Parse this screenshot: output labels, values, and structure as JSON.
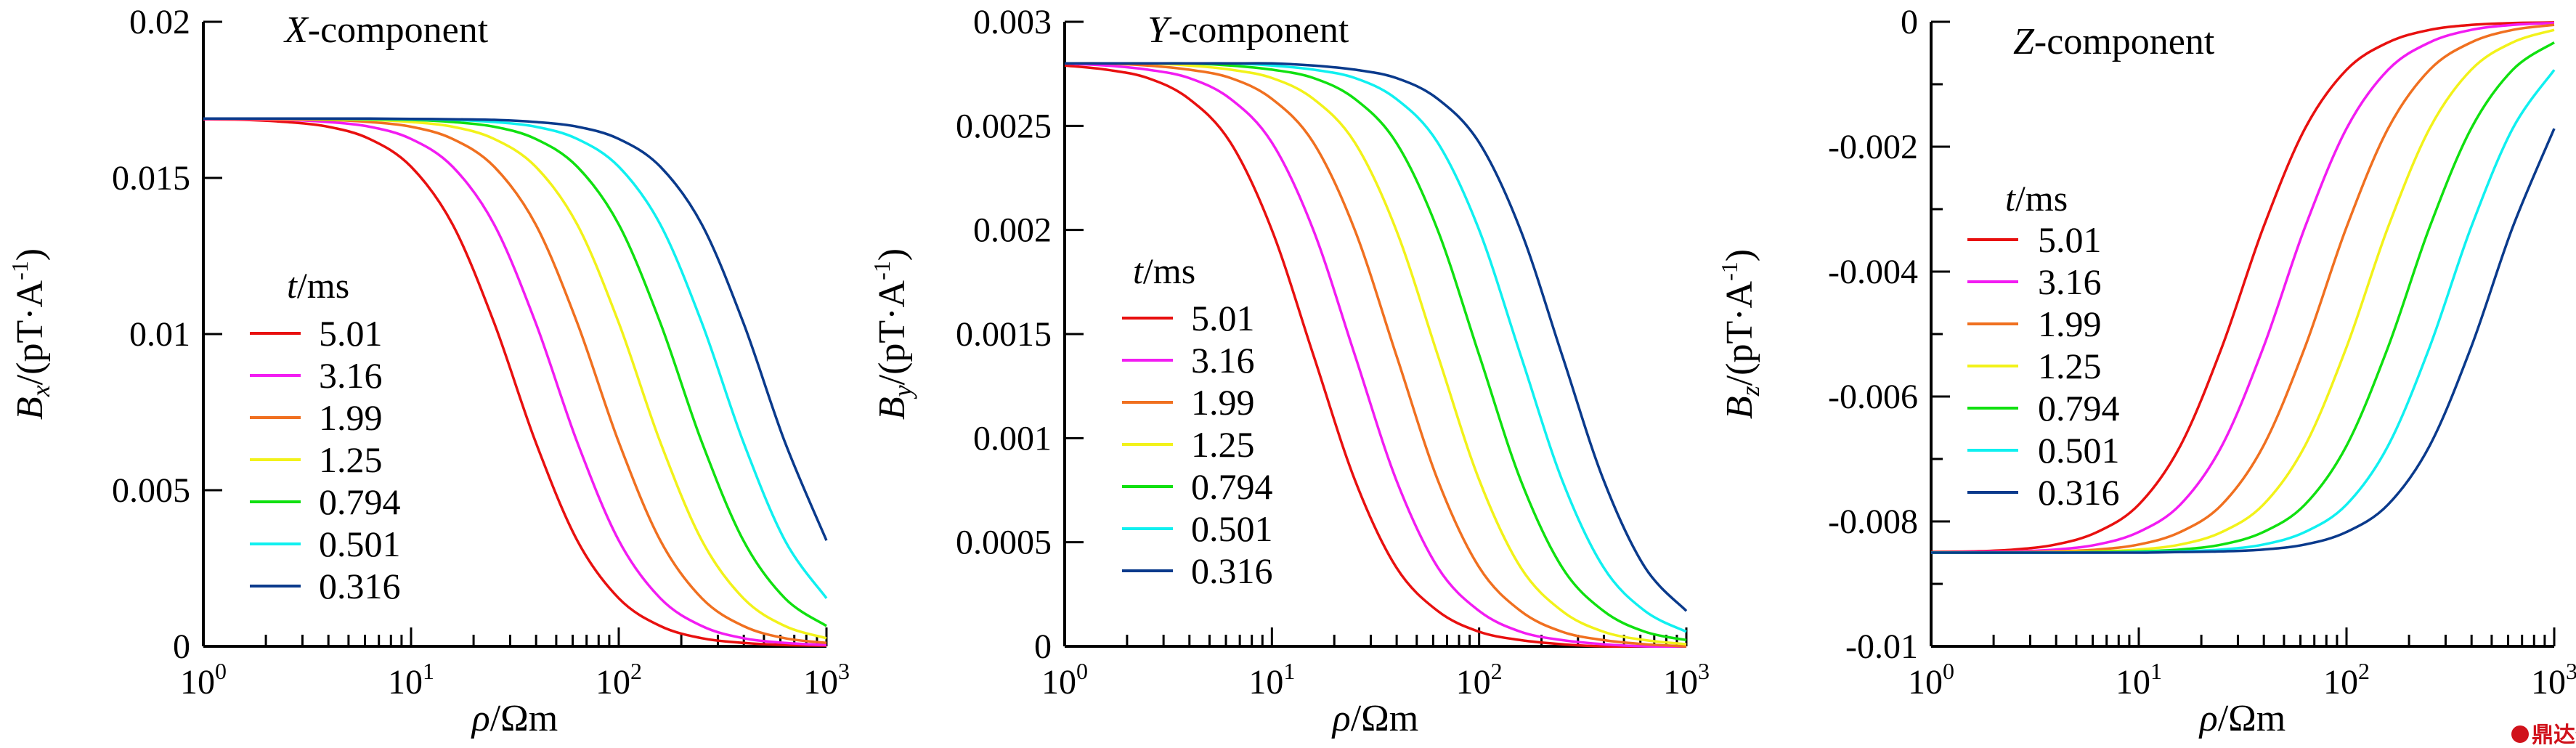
{
  "x_grid": [
    1,
    1.585,
    2.512,
    3.981,
    6.31,
    10,
    15.85,
    25.12,
    39.81,
    63.1,
    100,
    158.5,
    251.2,
    398.1,
    631,
    1000
  ],
  "legend_title": {
    "var": "t",
    "unit": "/ms"
  },
  "colors": [
    "#e8100f",
    "#f21cf2",
    "#f07020",
    "#f2f21a",
    "#10e010",
    "#10f0f0",
    "#0a3a8c"
  ],
  "watermark": "鼎达信",
  "chart_data": [
    {
      "type": "line",
      "title_var": "X",
      "title_rest": "-component",
      "xlabel_var": "ρ",
      "xlabel_unit": "/Ωm",
      "xscale": "log",
      "xlim": [
        1,
        1000
      ],
      "xticks": [
        {
          "base": "10",
          "exp": "0"
        },
        {
          "base": "10",
          "exp": "1"
        },
        {
          "base": "10",
          "exp": "2"
        },
        {
          "base": "10",
          "exp": "3"
        }
      ],
      "ylabel_var": "B",
      "ylabel_sub": "x",
      "ylabel_unit": "/(pT·A",
      "ylabel_sup": "-1",
      "ylabel_end": ")",
      "ylim": [
        0,
        0.02
      ],
      "yticks": [
        "0",
        "0.005",
        "0.01",
        "0.015",
        "0.02"
      ],
      "ytick_values": [
        0,
        0.005,
        0.01,
        0.015,
        0.02
      ],
      "yminor": [],
      "legend_placement": "center-left",
      "series": [
        {
          "name": "5.01",
          "values": [
            0.01688,
            0.01686,
            0.01679,
            0.01664,
            0.01625,
            0.01536,
            0.01351,
            0.01036,
            0.00654,
            0.00339,
            0.00154,
            0.00065,
            0.00026,
            0.00011,
            4e-05,
            2e-05
          ]
        },
        {
          "name": "3.16",
          "values": [
            0.01689,
            0.01688,
            0.01686,
            0.01679,
            0.01664,
            0.01625,
            0.01536,
            0.01351,
            0.01036,
            0.00654,
            0.00339,
            0.00154,
            0.00065,
            0.00026,
            0.00011,
            4e-05
          ]
        },
        {
          "name": "1.99",
          "values": [
            0.0169,
            0.01689,
            0.01688,
            0.01686,
            0.01679,
            0.01664,
            0.01625,
            0.01536,
            0.01351,
            0.01036,
            0.00654,
            0.00339,
            0.00154,
            0.00065,
            0.00026,
            0.00011
          ]
        },
        {
          "name": "1.25",
          "values": [
            0.0169,
            0.0169,
            0.01689,
            0.01688,
            0.01686,
            0.01679,
            0.01664,
            0.01625,
            0.01536,
            0.01351,
            0.01036,
            0.00654,
            0.00339,
            0.00154,
            0.00065,
            0.00026
          ]
        },
        {
          "name": "0.794",
          "values": [
            0.0169,
            0.0169,
            0.0169,
            0.01689,
            0.01688,
            0.01686,
            0.01679,
            0.01664,
            0.01625,
            0.01536,
            0.01351,
            0.01036,
            0.00654,
            0.00339,
            0.00154,
            0.00065
          ]
        },
        {
          "name": "0.501",
          "values": [
            0.0169,
            0.0169,
            0.0169,
            0.0169,
            0.01689,
            0.01688,
            0.01686,
            0.01679,
            0.01664,
            0.01625,
            0.01536,
            0.01351,
            0.01036,
            0.00654,
            0.00339,
            0.00154
          ]
        },
        {
          "name": "0.316",
          "values": [
            0.0169,
            0.0169,
            0.0169,
            0.0169,
            0.0169,
            0.01689,
            0.01688,
            0.01686,
            0.01679,
            0.01664,
            0.01625,
            0.01536,
            0.01351,
            0.01036,
            0.00654,
            0.00339
          ]
        }
      ]
    },
    {
      "type": "line",
      "title_var": "Y",
      "title_rest": "-component",
      "xlabel_var": "ρ",
      "xlabel_unit": "/Ωm",
      "xscale": "log",
      "xlim": [
        1,
        1000
      ],
      "xticks": [
        {
          "base": "10",
          "exp": "0"
        },
        {
          "base": "10",
          "exp": "1"
        },
        {
          "base": "10",
          "exp": "2"
        },
        {
          "base": "10",
          "exp": "3"
        }
      ],
      "ylabel_var": "B",
      "ylabel_sub": "y",
      "ylabel_unit": "/(pT·A",
      "ylabel_sup": "-1",
      "ylabel_end": ")",
      "ylim": [
        0,
        0.003
      ],
      "yticks": [
        "0",
        "0.0005",
        "0.001",
        "0.0015",
        "0.002",
        "0.0025",
        "0.003"
      ],
      "ytick_values": [
        0,
        0.0005,
        0.001,
        0.0015,
        0.002,
        0.0025,
        0.003
      ],
      "yminor": [],
      "legend_placement": "center-left",
      "series": [
        {
          "name": "5.01",
          "values": [
            0.00279,
            0.00277,
            0.00273,
            0.00263,
            0.00242,
            0.002,
            0.0014,
            0.0008,
            0.00038,
            0.00017,
            7e-05,
            3e-05,
            1e-05,
            0,
            0,
            0
          ]
        },
        {
          "name": "3.16",
          "values": [
            0.0028,
            0.00279,
            0.00277,
            0.00273,
            0.00263,
            0.00242,
            0.002,
            0.0014,
            0.0008,
            0.00038,
            0.00017,
            7e-05,
            3e-05,
            1e-05,
            0,
            0
          ]
        },
        {
          "name": "1.99",
          "values": [
            0.0028,
            0.0028,
            0.00279,
            0.00277,
            0.00273,
            0.00263,
            0.00242,
            0.002,
            0.0014,
            0.0008,
            0.00038,
            0.00017,
            7e-05,
            3e-05,
            1e-05,
            0
          ]
        },
        {
          "name": "1.25",
          "values": [
            0.0028,
            0.0028,
            0.0028,
            0.00279,
            0.00277,
            0.00273,
            0.00263,
            0.00242,
            0.002,
            0.0014,
            0.0008,
            0.00038,
            0.00017,
            7e-05,
            3e-05,
            1e-05
          ]
        },
        {
          "name": "0.794",
          "values": [
            0.0028,
            0.0028,
            0.0028,
            0.0028,
            0.00279,
            0.00277,
            0.00273,
            0.00263,
            0.00242,
            0.002,
            0.0014,
            0.0008,
            0.00038,
            0.00017,
            7e-05,
            3e-05
          ]
        },
        {
          "name": "0.501",
          "values": [
            0.0028,
            0.0028,
            0.0028,
            0.0028,
            0.0028,
            0.00279,
            0.00277,
            0.00273,
            0.00263,
            0.00242,
            0.002,
            0.0014,
            0.0008,
            0.00038,
            0.00017,
            7e-05
          ]
        },
        {
          "name": "0.316",
          "values": [
            0.0028,
            0.0028,
            0.0028,
            0.0028,
            0.0028,
            0.0028,
            0.00279,
            0.00277,
            0.00273,
            0.00263,
            0.00242,
            0.002,
            0.0014,
            0.0008,
            0.00038,
            0.00017
          ]
        }
      ]
    },
    {
      "type": "line",
      "title_var": "Z",
      "title_rest": "-component",
      "xlabel_var": "ρ",
      "xlabel_unit": "/Ωm",
      "xscale": "log",
      "xlim": [
        1,
        1000
      ],
      "xticks": [
        {
          "base": "10",
          "exp": "0"
        },
        {
          "base": "10",
          "exp": "1"
        },
        {
          "base": "10",
          "exp": "2"
        },
        {
          "base": "10",
          "exp": "3"
        }
      ],
      "ylabel_var": "B",
      "ylabel_sub": "z",
      "ylabel_unit": "/(pT·A",
      "ylabel_sup": "-1",
      "ylabel_end": ")",
      "ylim": [
        -0.01,
        0
      ],
      "yticks": [
        "-0.01",
        "-0.008",
        "-0.006",
        "-0.004",
        "-0.002",
        "0"
      ],
      "ytick_values": [
        -0.01,
        -0.008,
        -0.006,
        -0.004,
        -0.002,
        0
      ],
      "yminor": [
        -0.009,
        -0.007,
        -0.005,
        -0.003,
        -0.001
      ],
      "legend_placement": "center-left",
      "series": [
        {
          "name": "5.01",
          "values": [
            -0.00849,
            -0.00848,
            -0.00845,
            -0.00837,
            -0.00817,
            -0.00773,
            -0.00679,
            -0.00521,
            -0.00329,
            -0.00171,
            -0.00077,
            -0.00033,
            -0.00013,
            -5e-05,
            -2e-05,
            -1e-05
          ]
        },
        {
          "name": "3.16",
          "values": [
            -0.0085,
            -0.00849,
            -0.00848,
            -0.00845,
            -0.00837,
            -0.00817,
            -0.00773,
            -0.00679,
            -0.00521,
            -0.00329,
            -0.00171,
            -0.00077,
            -0.00033,
            -0.00013,
            -5e-05,
            -2e-05
          ]
        },
        {
          "name": "1.99",
          "values": [
            -0.0085,
            -0.0085,
            -0.00849,
            -0.00848,
            -0.00845,
            -0.00837,
            -0.00817,
            -0.00773,
            -0.00679,
            -0.00521,
            -0.00329,
            -0.00171,
            -0.00077,
            -0.00033,
            -0.00013,
            -5e-05
          ]
        },
        {
          "name": "1.25",
          "values": [
            -0.0085,
            -0.0085,
            -0.0085,
            -0.00849,
            -0.00848,
            -0.00845,
            -0.00837,
            -0.00817,
            -0.00773,
            -0.00679,
            -0.00521,
            -0.00329,
            -0.00171,
            -0.00077,
            -0.00033,
            -0.00013
          ]
        },
        {
          "name": "0.794",
          "values": [
            -0.0085,
            -0.0085,
            -0.0085,
            -0.0085,
            -0.00849,
            -0.00848,
            -0.00845,
            -0.00837,
            -0.00817,
            -0.00773,
            -0.00679,
            -0.00521,
            -0.00329,
            -0.00171,
            -0.00077,
            -0.00033
          ]
        },
        {
          "name": "0.501",
          "values": [
            -0.0085,
            -0.0085,
            -0.0085,
            -0.0085,
            -0.0085,
            -0.00849,
            -0.00848,
            -0.00845,
            -0.00837,
            -0.00817,
            -0.00773,
            -0.00679,
            -0.00521,
            -0.00329,
            -0.00171,
            -0.00077
          ]
        },
        {
          "name": "0.316",
          "values": [
            -0.0085,
            -0.0085,
            -0.0085,
            -0.0085,
            -0.0085,
            -0.0085,
            -0.00849,
            -0.00848,
            -0.00845,
            -0.00837,
            -0.00817,
            -0.00773,
            -0.00679,
            -0.00521,
            -0.00329,
            -0.00171
          ]
        }
      ]
    }
  ]
}
